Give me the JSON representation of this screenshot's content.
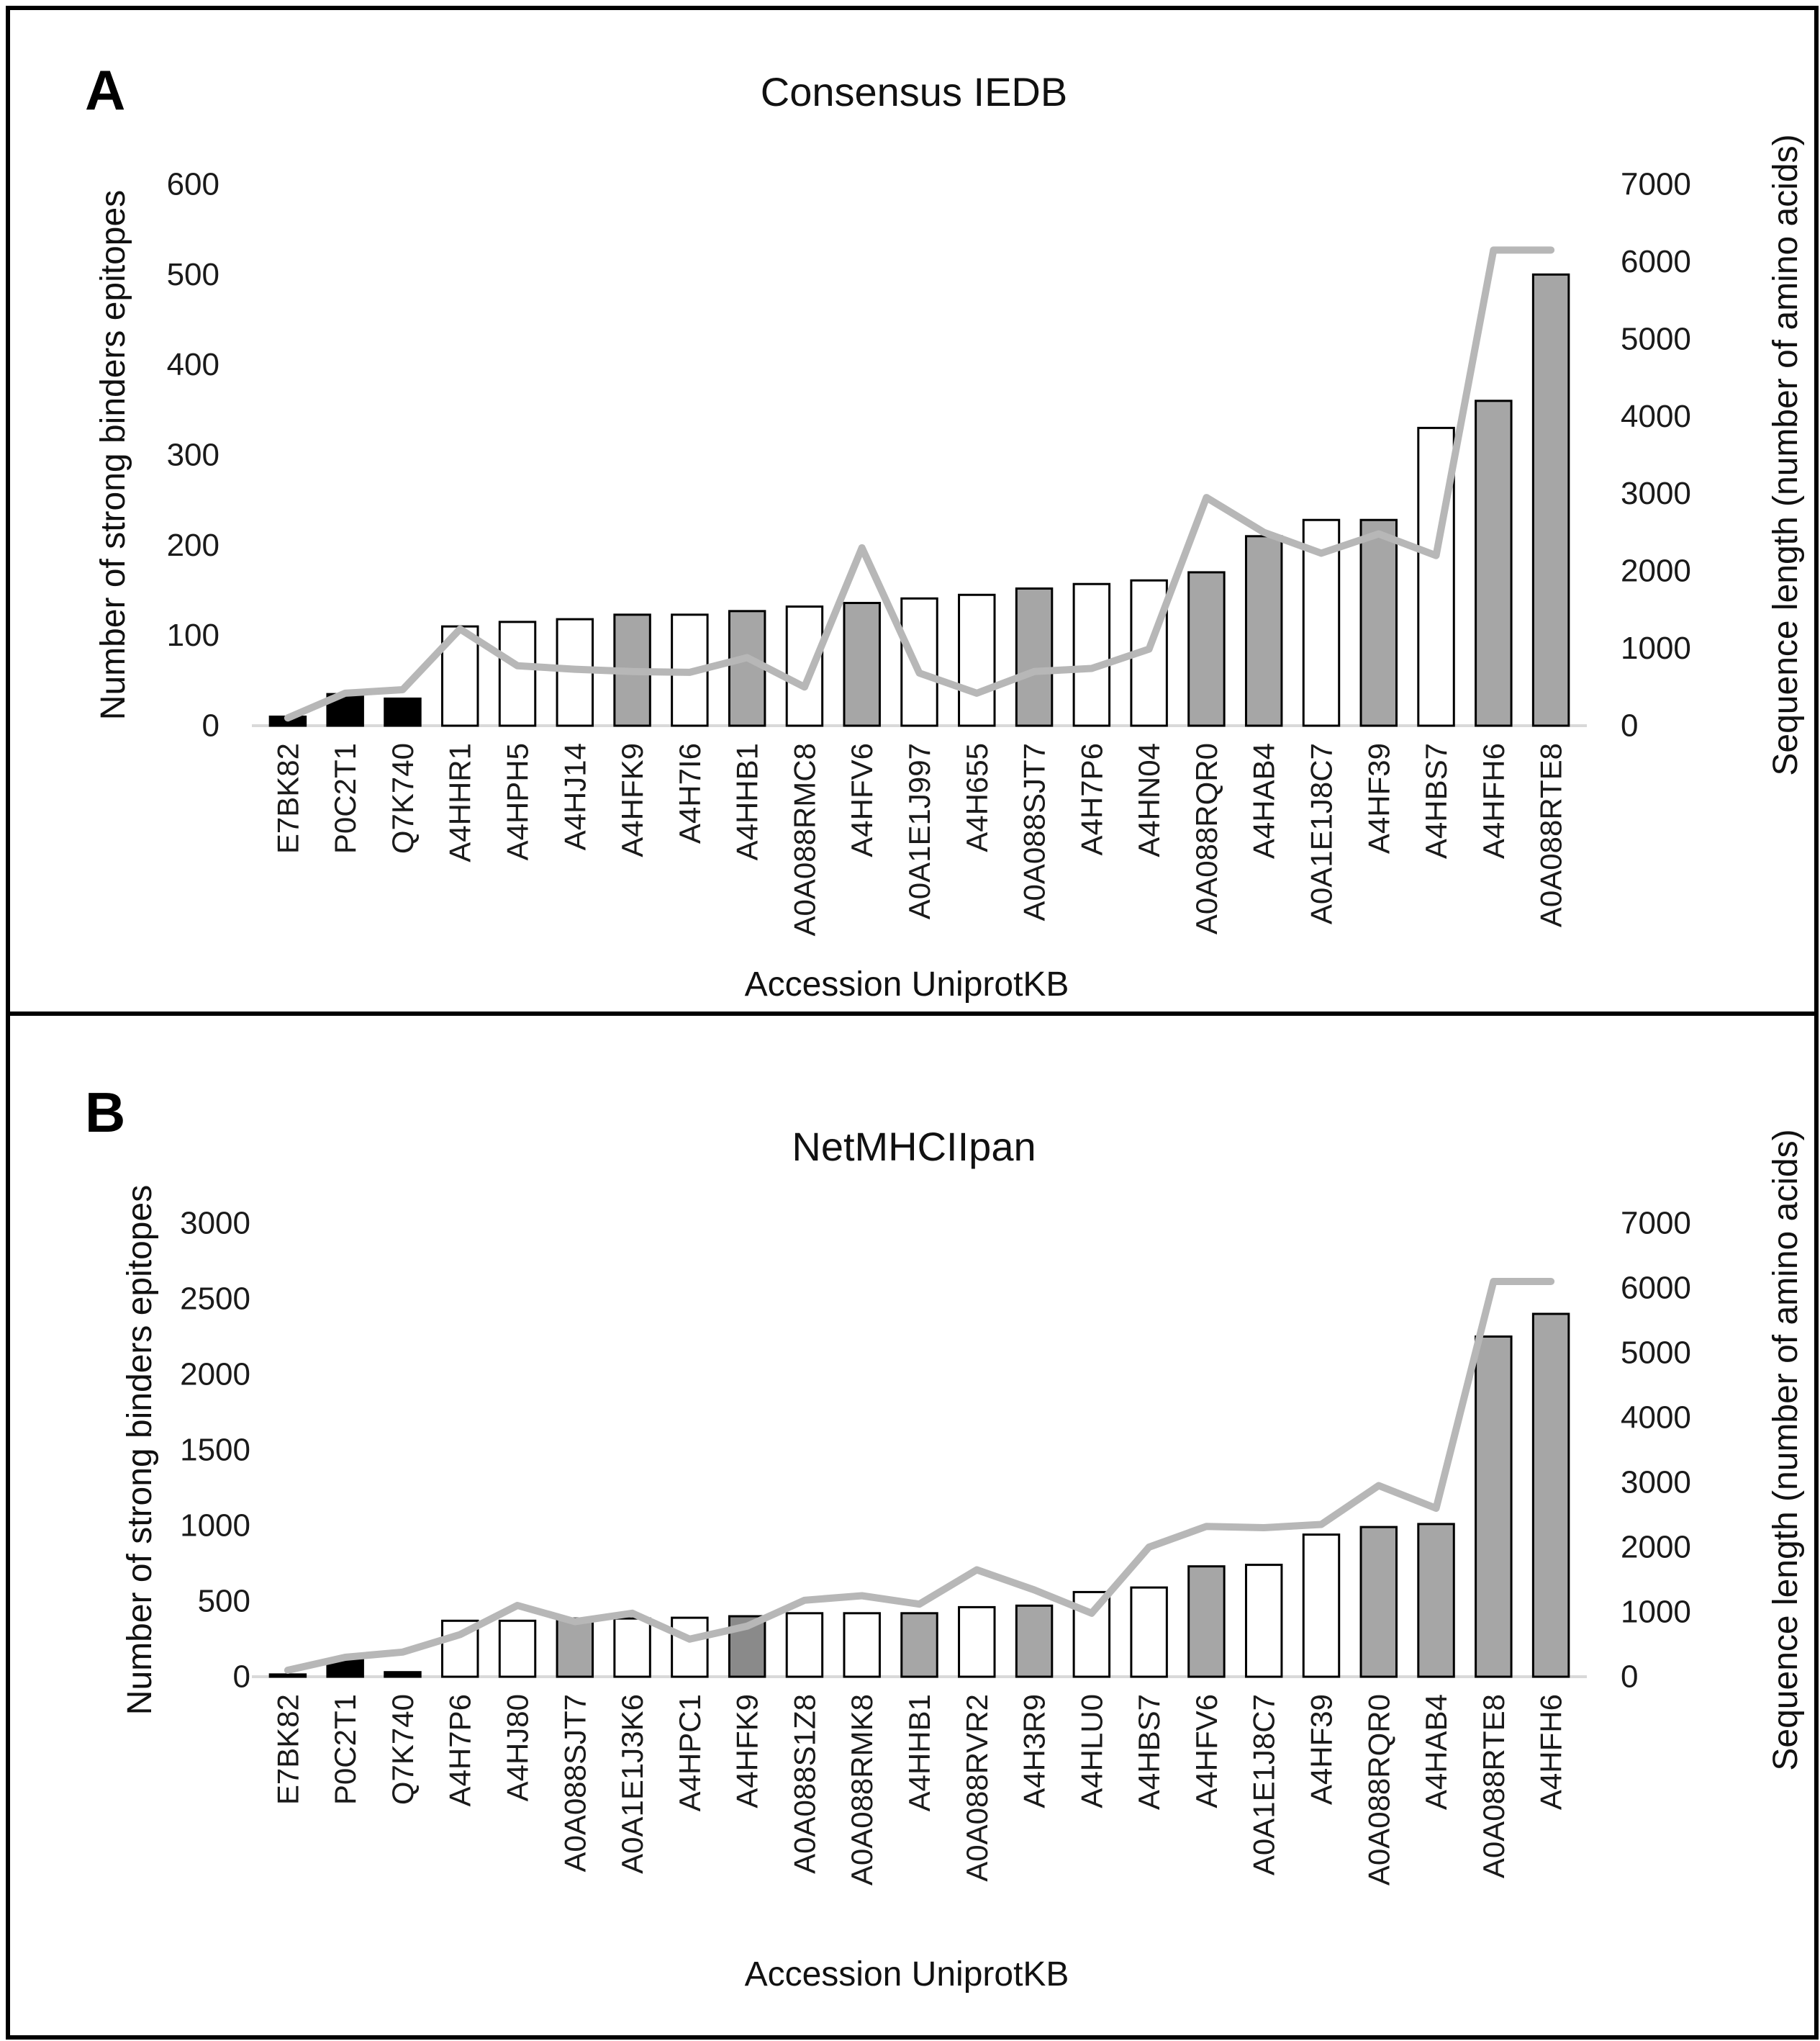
{
  "figure": {
    "background": "#ffffff",
    "panels": [
      {
        "letter": "A",
        "title": "Consensus IEDB"
      },
      {
        "letter": "B",
        "title": "NetMHCIIpan"
      }
    ]
  },
  "colors": {
    "bar_black": "#000000",
    "bar_white": "#ffffff",
    "bar_gray": "#a6a6a6",
    "bar_darkgray": "#8a8a8a",
    "bar_border": "#000000",
    "line": "#b7b7b7",
    "axis_line": "#d9d9d9",
    "text": "#1a1a1a"
  },
  "chart_data": [
    {
      "id": "consensus-iedb",
      "type": "bar",
      "combo": "bar+line",
      "panel_letter": "A",
      "title": "Consensus IEDB",
      "xlabel": "Accession UniprotKB",
      "ylabel_left": "Number of strong binders epitopes",
      "ylabel_right": "Sequence length (number of amino acids)",
      "ylim_left": [
        0,
        600
      ],
      "yticks_left": [
        0,
        100,
        200,
        300,
        400,
        500,
        600
      ],
      "ylim_right": [
        0,
        7000
      ],
      "yticks_right": [
        0,
        1000,
        2000,
        3000,
        4000,
        5000,
        6000,
        7000
      ],
      "grid": false,
      "legend": "none",
      "categories": [
        "E7BK82",
        "P0C2T1",
        "Q7K740",
        "A4HHR1",
        "A4HPH5",
        "A4HJ14",
        "A4HFK9",
        "A4H7I6",
        "A4HHB1",
        "A0A088RMC8",
        "A4HFV6",
        "A0A1E1J997",
        "A4H655",
        "A0A088SJT7",
        "A4H7P6",
        "A4HN04",
        "A0A088RQR0",
        "A4HAB4",
        "A0A1E1J8C7",
        "A4HF39",
        "A4HBS7",
        "A4HFH6",
        "A0A088RTE8"
      ],
      "series": [
        {
          "name": "Number of strong binders epitopes",
          "render": "bar",
          "axis": "left",
          "values": [
            10,
            35,
            30,
            110,
            115,
            118,
            123,
            123,
            127,
            132,
            136,
            141,
            145,
            152,
            157,
            161,
            170,
            210,
            228,
            228,
            330,
            360,
            500
          ],
          "bar_colors": [
            "black",
            "black",
            "black",
            "white",
            "white",
            "white",
            "gray",
            "white",
            "gray",
            "white",
            "gray",
            "white",
            "white",
            "gray",
            "white",
            "white",
            "gray",
            "gray",
            "white",
            "gray",
            "white",
            "gray",
            "gray"
          ]
        },
        {
          "name": "Sequence length (number of amino acids)",
          "render": "line",
          "axis": "right",
          "values": [
            100,
            420,
            465,
            1250,
            775,
            730,
            700,
            690,
            880,
            500,
            2300,
            680,
            420,
            700,
            740,
            990,
            2950,
            2500,
            2230,
            2480,
            2200,
            6150,
            6150
          ]
        }
      ]
    },
    {
      "id": "netmhciipan",
      "type": "bar",
      "combo": "bar+line",
      "panel_letter": "B",
      "title": "NetMHCIIpan",
      "xlabel": "Accession UniprotKB",
      "ylabel_left": "Number of strong binders epitopes",
      "ylabel_right": "Sequence length (number of amino acids)",
      "ylim_left": [
        0,
        3000
      ],
      "yticks_left": [
        0,
        500,
        1000,
        1500,
        2000,
        2500,
        3000
      ],
      "ylim_right": [
        0,
        7000
      ],
      "yticks_right": [
        0,
        1000,
        2000,
        3000,
        4000,
        5000,
        6000,
        7000
      ],
      "grid": false,
      "legend": "none",
      "categories": [
        "E7BK82",
        "P0C2T1",
        "Q7K740",
        "A4H7P6",
        "A4HJ80",
        "A0A088SJT7",
        "A0A1E1J3K6",
        "A4HPC1",
        "A4HFK9",
        "A0A088S1Z8",
        "A0A088RMK8",
        "A4HHB1",
        "A0A088RVR2",
        "A4H3R9",
        "A4HLU0",
        "A4HBS7",
        "A4HFV6",
        "A0A1E1J8C7",
        "A4HF39",
        "A0A088RQR0",
        "A4HAB4",
        "A0A088RTE8",
        "A4HFH6"
      ],
      "series": [
        {
          "name": "Number of strong binders epitopes",
          "render": "bar",
          "axis": "left",
          "values": [
            15,
            110,
            30,
            370,
            370,
            385,
            385,
            390,
            400,
            420,
            420,
            420,
            460,
            470,
            560,
            590,
            730,
            740,
            940,
            990,
            1010,
            2250,
            2400
          ],
          "bar_colors": [
            "black",
            "black",
            "black",
            "white",
            "white",
            "gray",
            "white",
            "white",
            "darkgray",
            "white",
            "white",
            "gray",
            "white",
            "gray",
            "white",
            "white",
            "gray",
            "white",
            "white",
            "gray",
            "gray",
            "gray",
            "gray"
          ]
        },
        {
          "name": "Sequence length (number of amino acids)",
          "render": "line",
          "axis": "right",
          "values": [
            100,
            300,
            380,
            650,
            1100,
            850,
            980,
            580,
            780,
            1180,
            1250,
            1120,
            1650,
            1340,
            980,
            2000,
            2320,
            2300,
            2350,
            2950,
            2600,
            6100,
            6100
          ]
        }
      ]
    }
  ]
}
